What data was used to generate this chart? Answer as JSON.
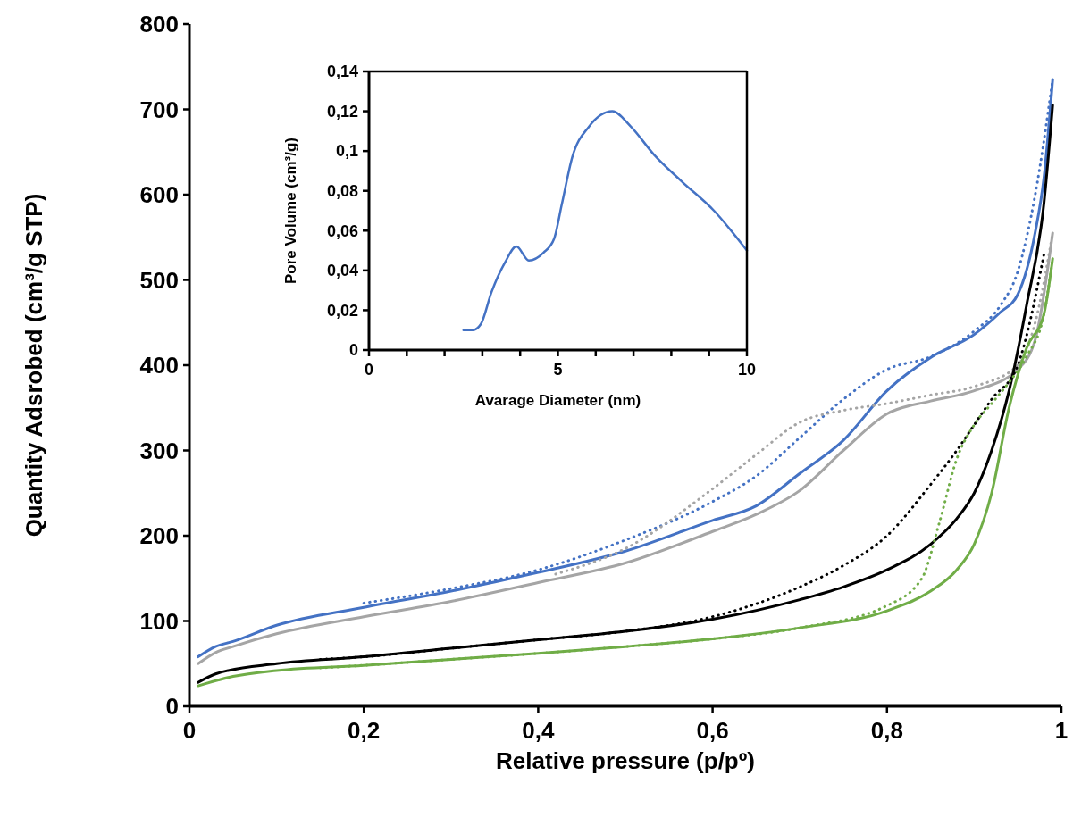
{
  "chart_data": [
    {
      "type": "line",
      "xlabel": "Relative pressure (p/pº)",
      "ylabel": "Quantity Adsrobed (cm³/g STP)",
      "xlim": [
        0,
        1
      ],
      "ylim": [
        0,
        800
      ],
      "xticks": [
        0,
        {
          "value": 0.2,
          "label": "0,2"
        },
        {
          "value": 0.4,
          "label": "0,4"
        },
        {
          "value": 0.6,
          "label": "0,6"
        },
        {
          "value": 0.8,
          "label": "0,8"
        },
        1
      ],
      "yticks": [
        0,
        100,
        200,
        300,
        400,
        500,
        600,
        700,
        800
      ],
      "grid": false,
      "marker": "none",
      "series": [
        {
          "color": "#4472c4",
          "line_style": "solid",
          "x": [
            0.01,
            0.03,
            0.05,
            0.1,
            0.2,
            0.3,
            0.4,
            0.5,
            0.6,
            0.65,
            0.7,
            0.75,
            0.8,
            0.85,
            0.9,
            0.93,
            0.95,
            0.97,
            0.98,
            0.99
          ],
          "values": [
            58,
            70,
            76,
            95,
            116,
            135,
            157,
            182,
            218,
            235,
            273,
            312,
            370,
            409,
            436,
            462,
            483,
            556,
            620,
            735
          ]
        },
        {
          "color": "#4472c4",
          "line_style": "dotted",
          "x": [
            0.2,
            0.3,
            0.4,
            0.5,
            0.6,
            0.65,
            0.7,
            0.75,
            0.8,
            0.85,
            0.9,
            0.93,
            0.95,
            0.97,
            0.99
          ],
          "values": [
            121,
            138,
            160,
            195,
            240,
            270,
            315,
            360,
            395,
            410,
            440,
            470,
            510,
            600,
            735
          ]
        },
        {
          "color": "#a5a5a5",
          "line_style": "solid",
          "x": [
            0.01,
            0.03,
            0.05,
            0.1,
            0.2,
            0.3,
            0.4,
            0.5,
            0.6,
            0.65,
            0.7,
            0.75,
            0.8,
            0.85,
            0.9,
            0.95,
            0.97,
            0.99
          ],
          "values": [
            50,
            63,
            70,
            85,
            105,
            123,
            145,
            168,
            205,
            225,
            253,
            300,
            343,
            358,
            370,
            395,
            430,
            555
          ]
        },
        {
          "color": "#a5a5a5",
          "line_style": "dotted",
          "x": [
            0.42,
            0.5,
            0.6,
            0.65,
            0.7,
            0.75,
            0.8,
            0.85,
            0.9,
            0.95,
            0.97,
            0.99
          ],
          "values": [
            155,
            185,
            255,
            295,
            333,
            347,
            355,
            365,
            375,
            400,
            450,
            555
          ]
        },
        {
          "color": "#000000",
          "line_style": "solid",
          "x": [
            0.01,
            0.03,
            0.1,
            0.2,
            0.3,
            0.4,
            0.5,
            0.6,
            0.7,
            0.75,
            0.8,
            0.85,
            0.88,
            0.9,
            0.92,
            0.94,
            0.96,
            0.98,
            0.99
          ],
          "values": [
            28,
            38,
            50,
            58,
            68,
            78,
            88,
            102,
            125,
            140,
            160,
            190,
            220,
            250,
            300,
            370,
            470,
            590,
            705
          ]
        },
        {
          "color": "#000000",
          "line_style": "dotted",
          "x": [
            0.15,
            0.2,
            0.3,
            0.4,
            0.5,
            0.6,
            0.7,
            0.75,
            0.8,
            0.85,
            0.88,
            0.9,
            0.92,
            0.95,
            0.98
          ],
          "values": [
            55,
            58,
            68,
            78,
            88,
            105,
            140,
            165,
            200,
            260,
            300,
            330,
            360,
            400,
            530
          ]
        },
        {
          "color": "#70ad47",
          "line_style": "solid",
          "x": [
            0.01,
            0.05,
            0.1,
            0.2,
            0.3,
            0.4,
            0.5,
            0.6,
            0.7,
            0.8,
            0.85,
            0.88,
            0.9,
            0.92,
            0.94,
            0.96,
            0.98,
            0.99
          ],
          "values": [
            24,
            35,
            42,
            48,
            55,
            62,
            70,
            79,
            92,
            112,
            135,
            160,
            190,
            250,
            350,
            420,
            460,
            525
          ]
        },
        {
          "color": "#70ad47",
          "line_style": "dotted",
          "x": [
            0.15,
            0.2,
            0.3,
            0.4,
            0.5,
            0.6,
            0.7,
            0.8,
            0.84,
            0.86,
            0.88,
            0.9,
            0.92,
            0.94,
            0.96,
            0.98,
            0.99
          ],
          "values": [
            45,
            48,
            55,
            62,
            70,
            79,
            92,
            118,
            150,
            215,
            290,
            330,
            355,
            380,
            410,
            460,
            525
          ]
        }
      ]
    },
    {
      "type": "line",
      "xlabel": "Avarage Diameter (nm)",
      "ylabel": "Pore Volume (cm³/g)",
      "xlim": [
        0,
        10
      ],
      "ylim": [
        0,
        0.14
      ],
      "xticks": [
        0,
        {
          "value": 1,
          "label": null
        },
        {
          "value": 2,
          "label": null
        },
        {
          "value": 3,
          "label": null
        },
        {
          "value": 4,
          "label": null
        },
        5,
        {
          "value": 6,
          "label": null
        },
        {
          "value": 7,
          "label": null
        },
        {
          "value": 8,
          "label": null
        },
        {
          "value": 9,
          "label": null
        },
        10
      ],
      "yticks": [
        0,
        {
          "value": 0.02,
          "label": "0,02"
        },
        {
          "value": 0.04,
          "label": "0,04"
        },
        {
          "value": 0.06,
          "label": "0,06"
        },
        {
          "value": 0.08,
          "label": "0,08"
        },
        {
          "value": 0.1,
          "label": "0,1"
        },
        {
          "value": 0.12,
          "label": "0,12"
        },
        {
          "value": 0.14,
          "label": "0,14"
        }
      ],
      "grid": false,
      "marker": "none",
      "series": [
        {
          "color": "#4472c4",
          "line_style": "solid",
          "x": [
            2.5,
            2.75,
            2.96,
            3.24,
            3.6,
            3.9,
            4.23,
            4.62,
            4.9,
            5.1,
            5.38,
            5.81,
            6.44,
            6.92,
            7.55,
            8.26,
            9.13,
            10
          ],
          "values": [
            0.01,
            0.01,
            0.013,
            0.029,
            0.044,
            0.052,
            0.045,
            0.049,
            0.056,
            0.073,
            0.097,
            0.112,
            0.12,
            0.1125,
            0.098,
            0.085,
            0.07,
            0.05
          ]
        }
      ]
    }
  ]
}
